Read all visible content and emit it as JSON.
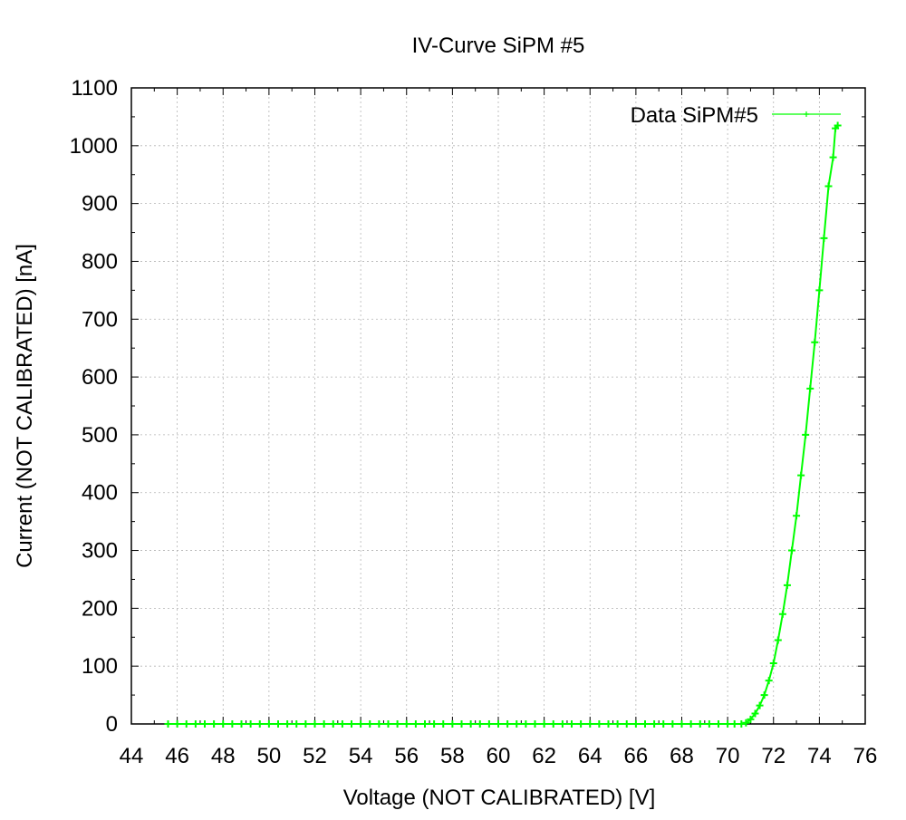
{
  "chart_data": {
    "type": "line",
    "title": "IV-Curve SiPM #5",
    "xlabel": "Voltage (NOT CALIBRATED) [V]",
    "ylabel": "Current (NOT CALIBRATED) [nA]",
    "xlim": [
      44,
      76
    ],
    "ylim": [
      0,
      1100
    ],
    "x_ticks": [
      44,
      46,
      48,
      50,
      52,
      54,
      56,
      58,
      60,
      62,
      64,
      66,
      68,
      70,
      72,
      74,
      76
    ],
    "y_ticks": [
      0,
      100,
      200,
      300,
      400,
      500,
      600,
      700,
      800,
      900,
      1000,
      1100
    ],
    "grid": true,
    "legend_position": "top-right",
    "series": [
      {
        "name": "Data SiPM#5",
        "color": "#00ff00",
        "marker": "plus",
        "x": [
          45.6,
          46.0,
          46.4,
          46.8,
          47.2,
          47.6,
          48.0,
          48.4,
          48.8,
          49.2,
          49.6,
          50.0,
          50.4,
          50.8,
          51.2,
          51.6,
          52.0,
          52.4,
          52.8,
          53.2,
          53.6,
          54.0,
          54.4,
          54.8,
          55.2,
          55.6,
          56.0,
          56.4,
          56.8,
          57.2,
          57.6,
          58.0,
          58.4,
          58.8,
          59.2,
          59.6,
          60.0,
          60.4,
          60.8,
          61.2,
          61.6,
          62.0,
          62.4,
          62.8,
          63.2,
          63.6,
          64.0,
          64.4,
          64.8,
          65.2,
          65.6,
          66.0,
          66.4,
          66.8,
          67.2,
          67.6,
          68.0,
          68.4,
          68.8,
          69.2,
          69.6,
          70.0,
          70.3,
          70.6,
          70.8,
          71.0,
          71.2,
          71.4,
          71.6,
          71.8,
          72.0,
          72.2,
          72.4,
          72.6,
          72.8,
          73.0,
          73.2,
          73.4,
          73.6,
          73.8,
          74.0,
          74.2,
          74.4,
          74.6,
          74.7,
          74.8
        ],
        "y": [
          0,
          0,
          0,
          0,
          0,
          0,
          0,
          0,
          0,
          0,
          0,
          0,
          0,
          0,
          0,
          0,
          0,
          0,
          0,
          0,
          0,
          0,
          0,
          0,
          0,
          0,
          0,
          0,
          0,
          0,
          0,
          0,
          0,
          0,
          0,
          0,
          0,
          0,
          0,
          0,
          0,
          0,
          0,
          0,
          0,
          0,
          0,
          0,
          0,
          0,
          0,
          0,
          0,
          0,
          0,
          0,
          0,
          0,
          0,
          0,
          0,
          0,
          0,
          0,
          2,
          8,
          18,
          32,
          50,
          75,
          105,
          145,
          190,
          240,
          300,
          360,
          430,
          500,
          580,
          660,
          750,
          840,
          930,
          980,
          1030,
          1035
        ]
      }
    ]
  }
}
